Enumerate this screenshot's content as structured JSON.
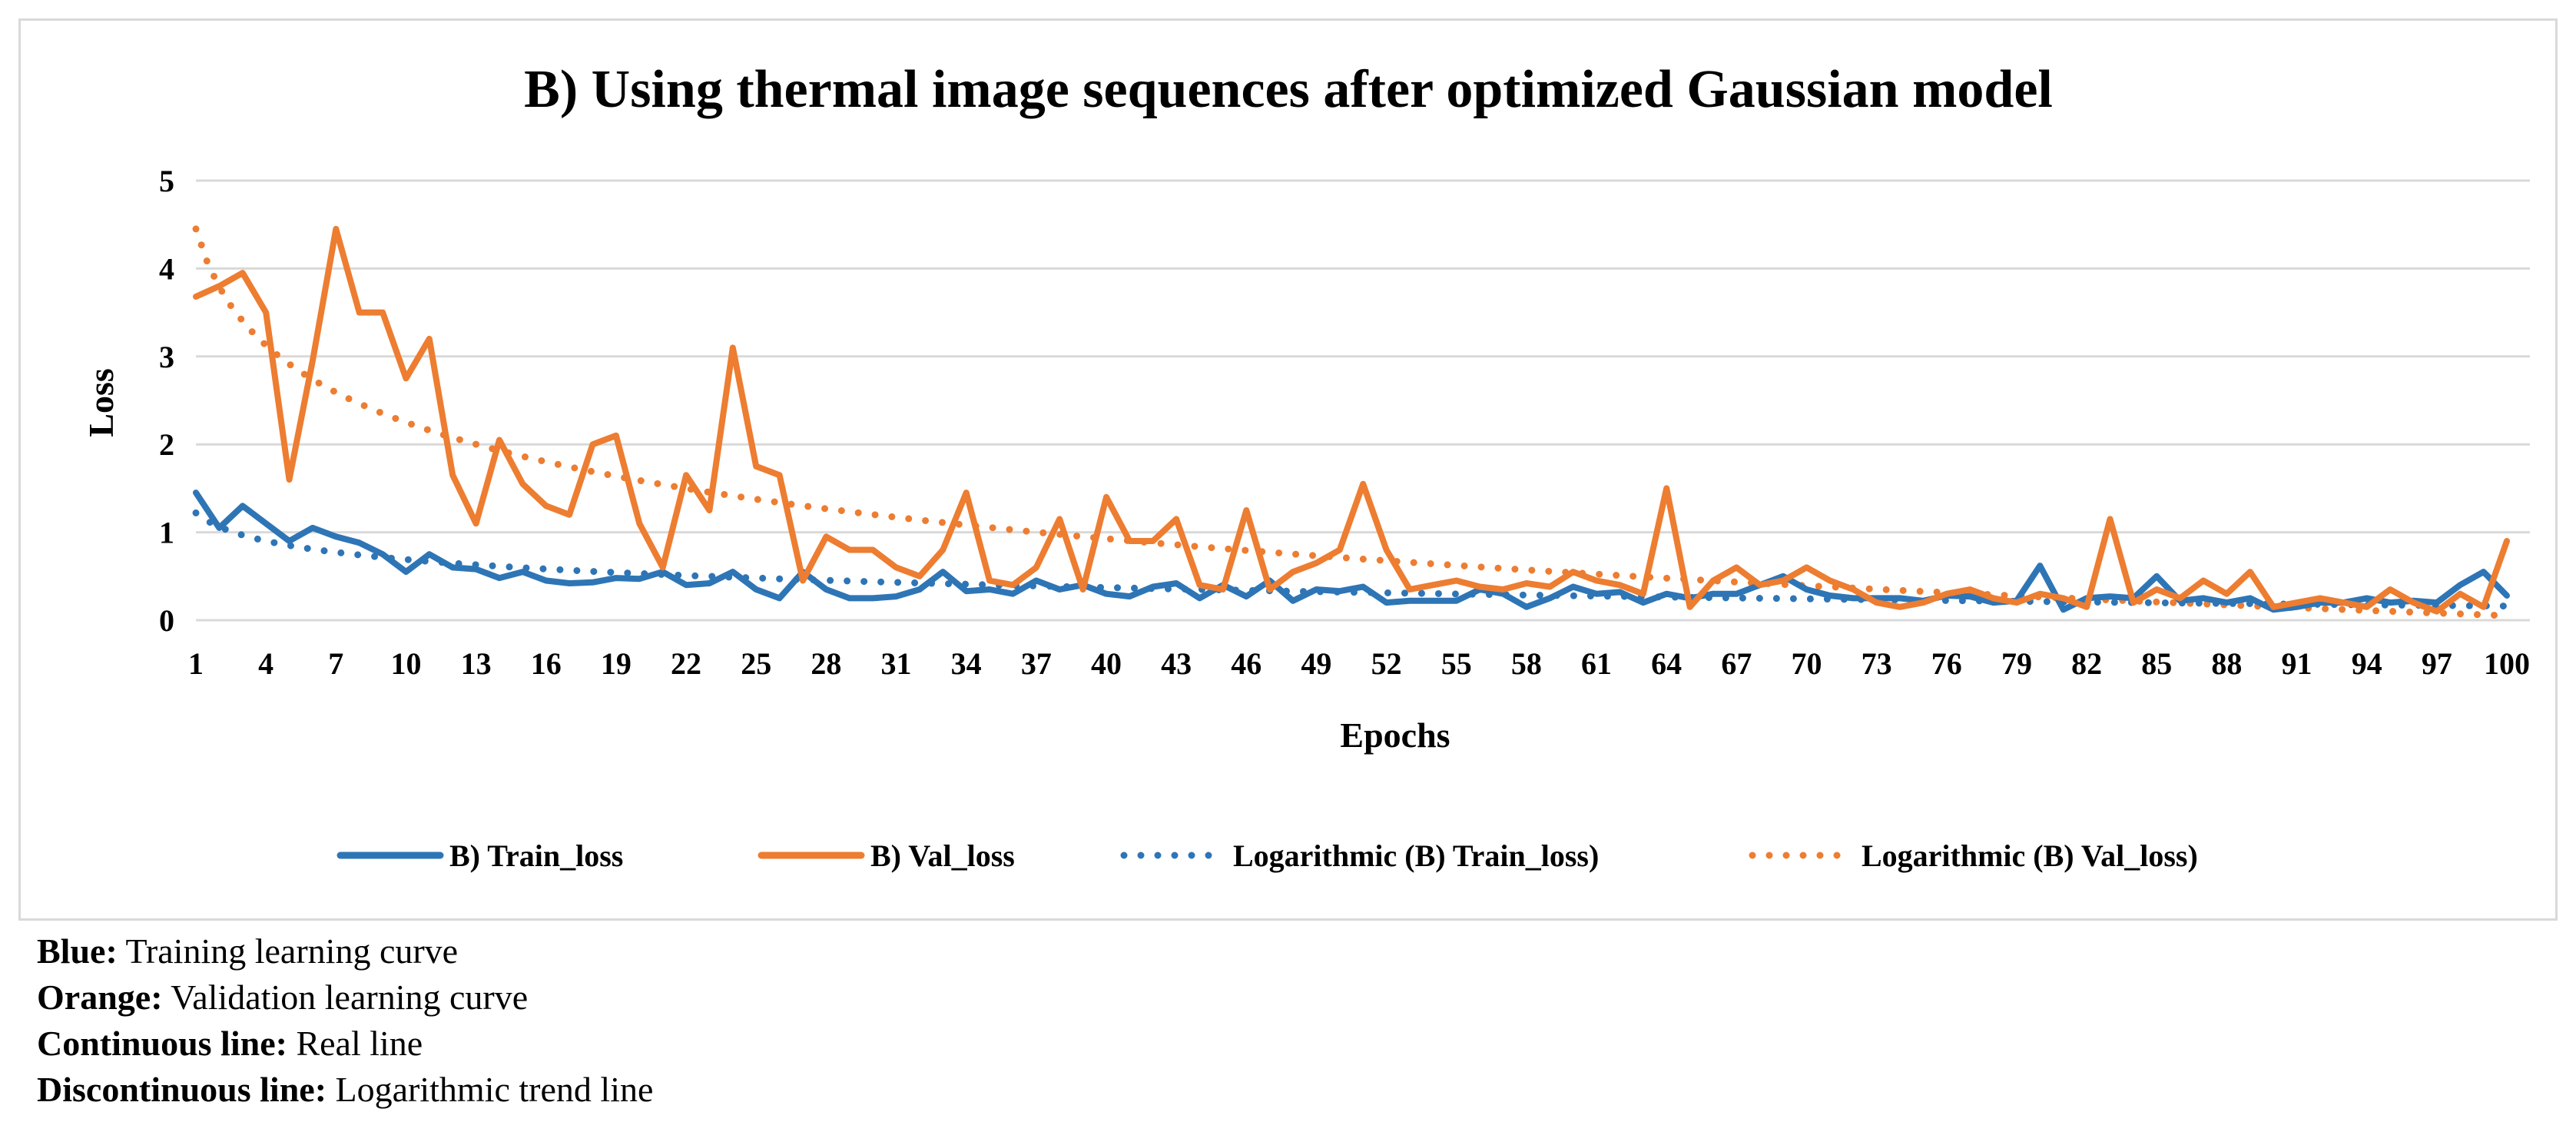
{
  "chart_data": {
    "type": "line",
    "title": "B) Using thermal image sequences after optimized Gaussian model",
    "xlabel": "Epochs",
    "ylabel": "Loss",
    "ylim": [
      0,
      5
    ],
    "yticks": [
      0,
      1,
      2,
      3,
      4,
      5
    ],
    "xlim": [
      1,
      100
    ],
    "xtick_labels": [
      1,
      4,
      7,
      10,
      13,
      16,
      19,
      22,
      25,
      28,
      31,
      34,
      37,
      40,
      43,
      46,
      49,
      52,
      55,
      58,
      61,
      64,
      67,
      70,
      73,
      76,
      79,
      82,
      85,
      88,
      91,
      94,
      97,
      100
    ],
    "grid": true,
    "legend_position": "bottom",
    "series": [
      {
        "name": "B) Train_loss",
        "style": "solid",
        "color": "#2e75b6",
        "values": [
          1.45,
          1.05,
          1.3,
          1.1,
          0.9,
          1.05,
          0.95,
          0.88,
          0.75,
          0.55,
          0.75,
          0.6,
          0.58,
          0.48,
          0.55,
          0.45,
          0.42,
          0.43,
          0.48,
          0.47,
          0.55,
          0.4,
          0.42,
          0.55,
          0.35,
          0.25,
          0.55,
          0.35,
          0.25,
          0.25,
          0.27,
          0.35,
          0.55,
          0.33,
          0.35,
          0.3,
          0.45,
          0.35,
          0.4,
          0.3,
          0.27,
          0.38,
          0.42,
          0.25,
          0.4,
          0.27,
          0.45,
          0.22,
          0.35,
          0.33,
          0.38,
          0.2,
          0.22,
          0.22,
          0.22,
          0.35,
          0.3,
          0.15,
          0.25,
          0.38,
          0.3,
          0.32,
          0.2,
          0.3,
          0.25,
          0.3,
          0.3,
          0.4,
          0.5,
          0.35,
          0.28,
          0.25,
          0.25,
          0.25,
          0.22,
          0.28,
          0.27,
          0.2,
          0.22,
          0.62,
          0.12,
          0.25,
          0.27,
          0.25,
          0.5,
          0.22,
          0.25,
          0.2,
          0.25,
          0.12,
          0.15,
          0.2,
          0.2,
          0.25,
          0.2,
          0.22,
          0.2,
          0.4,
          0.55,
          0.28
        ]
      },
      {
        "name": "B) Val_loss",
        "style": "solid",
        "color": "#ed7d31",
        "values": [
          3.68,
          3.8,
          3.95,
          3.5,
          1.6,
          2.95,
          4.45,
          3.5,
          3.5,
          2.75,
          3.2,
          1.65,
          1.1,
          2.05,
          1.55,
          1.3,
          1.2,
          2.0,
          2.1,
          1.1,
          0.6,
          1.65,
          1.25,
          3.1,
          1.75,
          1.65,
          0.45,
          0.95,
          0.8,
          0.8,
          0.6,
          0.5,
          0.8,
          1.45,
          0.45,
          0.4,
          0.6,
          1.15,
          0.35,
          1.4,
          0.9,
          0.9,
          1.15,
          0.4,
          0.35,
          1.25,
          0.35,
          0.55,
          0.65,
          0.8,
          1.55,
          0.8,
          0.35,
          0.4,
          0.45,
          0.38,
          0.35,
          0.42,
          0.38,
          0.55,
          0.45,
          0.4,
          0.3,
          1.5,
          0.15,
          0.45,
          0.6,
          0.4,
          0.45,
          0.6,
          0.45,
          0.35,
          0.2,
          0.15,
          0.2,
          0.3,
          0.35,
          0.25,
          0.2,
          0.3,
          0.25,
          0.15,
          1.15,
          0.2,
          0.35,
          0.25,
          0.45,
          0.3,
          0.55,
          0.15,
          0.2,
          0.25,
          0.2,
          0.15,
          0.35,
          0.2,
          0.1,
          0.3,
          0.15,
          0.9
        ]
      }
    ],
    "trendlines": [
      {
        "name": "Logarithmic (B) Train_loss)",
        "style": "dotted",
        "color": "#2e75b6",
        "type": "logarithmic",
        "a": 1.22,
        "b": -0.23
      },
      {
        "name": "Logarithmic (B) Val_loss)",
        "style": "dotted",
        "color": "#ed7d31",
        "type": "logarithmic",
        "a": 4.45,
        "b": -0.955
      }
    ]
  },
  "notes": [
    {
      "label": "Blue:",
      "text": " Training learning curve"
    },
    {
      "label": "Orange:",
      "text": " Validation learning curve"
    },
    {
      "label": "Continuous line:",
      "text": " Real line"
    },
    {
      "label": "Discontinuous line:",
      "text": " Logarithmic trend line"
    }
  ]
}
